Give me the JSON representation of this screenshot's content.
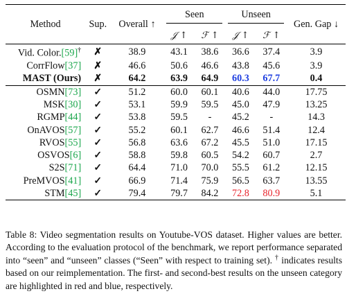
{
  "table": {
    "headers": {
      "method": "Method",
      "sup": "Sup.",
      "overall": "Overall ↑",
      "seen": "Seen",
      "unseen": "Unseen",
      "gen_gap": "Gen. Gap ↓",
      "j": "𝒥 ↑",
      "f": "ℱ ↑"
    },
    "rows": [
      {
        "name": "Vid. Color.",
        "ref": "[59]",
        "dagger": "†",
        "sup": "✗",
        "overall": "38.9",
        "sj": "43.1",
        "sf": "38.6",
        "uj": "36.6",
        "uf": "37.4",
        "gap": "3.9"
      },
      {
        "name": "CorrFlow",
        "ref": "[37]",
        "dagger": "",
        "sup": "✗",
        "overall": "46.6",
        "sj": "50.6",
        "sf": "46.6",
        "uj": "43.8",
        "uf": "45.6",
        "gap": "3.9"
      },
      {
        "name": "MAST (Ours)",
        "ref": "",
        "dagger": "",
        "sup": "✗",
        "overall": "64.2",
        "sj": "63.9",
        "sf": "64.9",
        "uj": "60.3",
        "uf": "67.7",
        "gap": "0.4"
      },
      {
        "name": "OSMN",
        "ref": "[73]",
        "dagger": "",
        "sup": "✓",
        "overall": "51.2",
        "sj": "60.0",
        "sf": "60.1",
        "uj": "40.6",
        "uf": "44.0",
        "gap": "17.75"
      },
      {
        "name": "MSK",
        "ref": "[30]",
        "dagger": "",
        "sup": "✓",
        "overall": "53.1",
        "sj": "59.9",
        "sf": "59.5",
        "uj": "45.0",
        "uf": "47.9",
        "gap": "13.25"
      },
      {
        "name": "RGMP",
        "ref": "[44]",
        "dagger": "",
        "sup": "✓",
        "overall": "53.8",
        "sj": "59.5",
        "sf": "-",
        "uj": "45.2",
        "uf": "-",
        "gap": "14.3"
      },
      {
        "name": "OnAVOS",
        "ref": "[57]",
        "dagger": "",
        "sup": "✓",
        "overall": "55.2",
        "sj": "60.1",
        "sf": "62.7",
        "uj": "46.6",
        "uf": "51.4",
        "gap": "12.4"
      },
      {
        "name": "RVOS",
        "ref": "[55]",
        "dagger": "",
        "sup": "✓",
        "overall": "56.8",
        "sj": "63.6",
        "sf": "67.2",
        "uj": "45.5",
        "uf": "51.0",
        "gap": "17.15"
      },
      {
        "name": "OSVOS",
        "ref": "[6]",
        "dagger": "",
        "sup": "✓",
        "overall": "58.8",
        "sj": "59.8",
        "sf": "60.5",
        "uj": "54.2",
        "uf": "60.7",
        "gap": "2.7"
      },
      {
        "name": "S2S",
        "ref": "[71]",
        "dagger": "",
        "sup": "✓",
        "overall": "64.4",
        "sj": "71.0",
        "sf": "70.0",
        "uj": "55.5",
        "uf": "61.2",
        "gap": "12.15"
      },
      {
        "name": "PreMVOS",
        "ref": "[41]",
        "dagger": "",
        "sup": "✓",
        "overall": "66.9",
        "sj": "71.4",
        "sf": "75.9",
        "uj": "56.5",
        "uf": "63.7",
        "gap": "13.55"
      },
      {
        "name": "STM",
        "ref": "[45]",
        "dagger": "",
        "sup": "✓",
        "overall": "79.4",
        "sj": "79.7",
        "sf": "84.2",
        "uj": "72.8",
        "uf": "80.9",
        "gap": "5.1"
      }
    ]
  },
  "caption": {
    "part1": "Table 8: Video segmentation results on Youtube-VOS dataset. Higher values are better. According to the evaluation protocol of the benchmark, we report performance separated into “seen” and “unseen” classes (“Seen” with respect to training set).",
    "dagger": "†",
    "part2": "indicates results based on our reimplementation. The first- and second-best results on the unseen category are highlighted in red and blue, respectively."
  },
  "colors": {
    "first_best": "#e8232b",
    "second_best": "#1f3fe0",
    "citation": "#1aa64b"
  }
}
